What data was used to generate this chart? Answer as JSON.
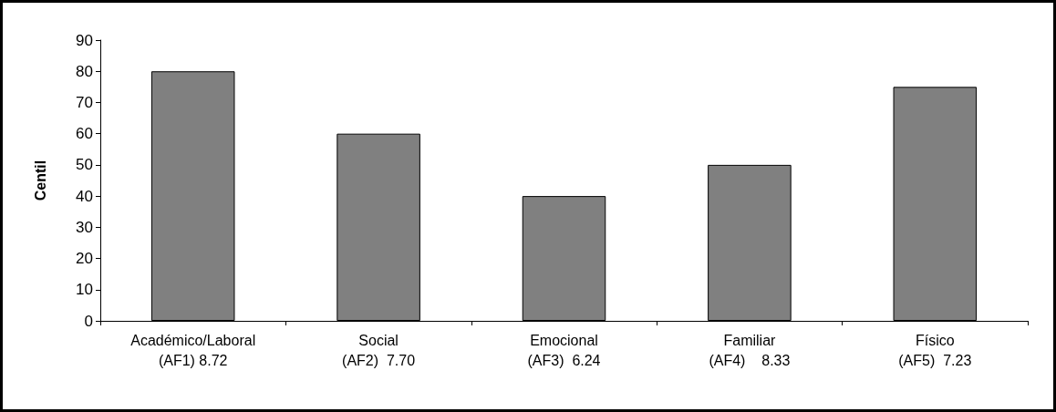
{
  "chart_data": {
    "type": "bar",
    "ylabel": "Centil",
    "categories": [
      "Académico/Laboral\n(AF1) 8.72",
      "Social\n(AF2)  7.70",
      "Emocional\n(AF3)  6.24",
      "Familiar\n(AF4)    8.33",
      "Físico\n(AF5)  7.23"
    ],
    "values": [
      80,
      60,
      40,
      50,
      75
    ],
    "color": "#808080",
    "ylim": [
      0,
      90
    ],
    "yticks": [
      0,
      10,
      20,
      30,
      40,
      50,
      60,
      70,
      80,
      90
    ],
    "grid": false
  }
}
